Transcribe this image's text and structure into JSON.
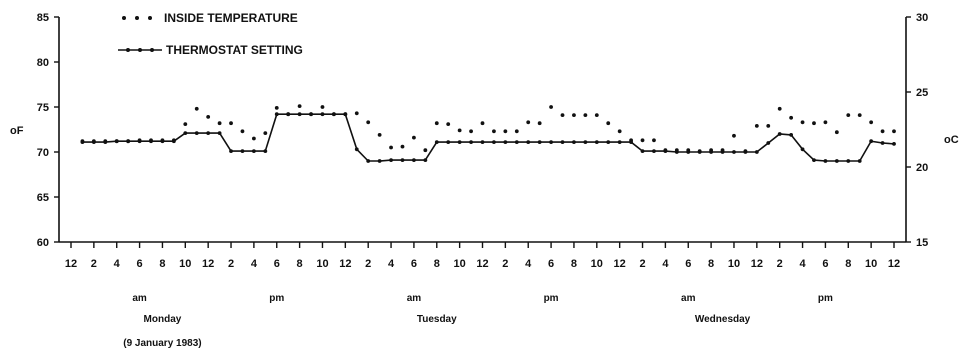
{
  "chart_data": {
    "type": "line",
    "title": "",
    "y_left": {
      "label": "oF",
      "ticks": [
        60,
        65,
        70,
        75,
        80,
        85
      ],
      "lim": [
        60,
        85
      ]
    },
    "y_right": {
      "label": "oC",
      "ticks": [
        15,
        20,
        25,
        30
      ],
      "lim": [
        15,
        30
      ]
    },
    "x_ticks": [
      "12",
      "2",
      "4",
      "6",
      "8",
      "10",
      "12",
      "2",
      "4",
      "6",
      "8",
      "10",
      "12",
      "2",
      "4",
      "6",
      "8",
      "10",
      "12",
      "2",
      "4",
      "6",
      "8",
      "10",
      "12",
      "2",
      "4",
      "6",
      "8",
      "10",
      "12",
      "2",
      "4",
      "6",
      "8",
      "10",
      "12"
    ],
    "x_tick_hours": [
      0,
      2,
      4,
      6,
      8,
      10,
      12,
      14,
      16,
      18,
      20,
      22,
      24,
      26,
      28,
      30,
      32,
      34,
      36,
      38,
      40,
      42,
      44,
      46,
      48,
      50,
      52,
      54,
      56,
      58,
      60,
      62,
      64,
      66,
      68,
      70,
      72
    ],
    "x_lim": [
      0,
      72
    ],
    "ampm_labels": [
      {
        "text": "am",
        "hour": 6
      },
      {
        "text": "pm",
        "hour": 18
      },
      {
        "text": "am",
        "hour": 30
      },
      {
        "text": "pm",
        "hour": 42
      },
      {
        "text": "am",
        "hour": 54
      },
      {
        "text": "pm",
        "hour": 66
      }
    ],
    "day_labels": [
      {
        "text": "Monday",
        "hour": 8
      },
      {
        "text": "Tuesday",
        "hour": 32
      },
      {
        "text": "Wednesday",
        "hour": 57
      }
    ],
    "date_note": {
      "text": "(9 January 1983)",
      "hour": 8
    },
    "legend": {
      "placement": "top-left"
    },
    "series": [
      {
        "name": "THERMOSTAT SETTING",
        "style": "line-with-dots",
        "x": [
          1,
          2,
          3,
          4,
          5,
          6,
          7,
          8,
          9,
          10,
          11,
          12,
          13,
          14,
          15,
          16,
          17,
          18,
          19,
          20,
          21,
          22,
          23,
          24,
          25,
          26,
          27,
          28,
          29,
          30,
          31,
          32,
          33,
          34,
          35,
          36,
          37,
          38,
          39,
          40,
          41,
          42,
          43,
          44,
          45,
          46,
          47,
          48,
          49,
          50,
          51,
          52,
          53,
          54,
          55,
          56,
          57,
          58,
          59,
          60,
          61,
          62,
          63,
          64,
          65,
          66,
          67,
          68,
          69,
          70,
          71,
          72
        ],
        "y": [
          71.1,
          71.1,
          71.1,
          71.2,
          71.2,
          71.2,
          71.2,
          71.2,
          71.2,
          72.1,
          72.1,
          72.1,
          72.1,
          70.1,
          70.1,
          70.1,
          70.1,
          74.2,
          74.2,
          74.2,
          74.2,
          74.2,
          74.2,
          74.2,
          70.3,
          69.0,
          69.0,
          69.1,
          69.1,
          69.1,
          69.1,
          71.1,
          71.1,
          71.1,
          71.1,
          71.1,
          71.1,
          71.1,
          71.1,
          71.1,
          71.1,
          71.1,
          71.1,
          71.1,
          71.1,
          71.1,
          71.1,
          71.1,
          71.1,
          70.1,
          70.1,
          70.1,
          70.0,
          70.0,
          70.0,
          70.0,
          70.0,
          70.0,
          70.0,
          70.0,
          71.0,
          72.0,
          71.9,
          70.3,
          69.1,
          69.0,
          69.0,
          69.0,
          69.0,
          71.2,
          71.0,
          70.9
        ]
      },
      {
        "name": "INSIDE TEMPERATURE",
        "style": "dots",
        "x": [
          1,
          2,
          3,
          4,
          5,
          6,
          7,
          8,
          9,
          10,
          11,
          12,
          13,
          14,
          15,
          16,
          17,
          18,
          19,
          20,
          21,
          22,
          23,
          24,
          25,
          26,
          27,
          28,
          29,
          30,
          31,
          32,
          33,
          34,
          35,
          36,
          37,
          38,
          39,
          40,
          41,
          42,
          43,
          44,
          45,
          46,
          47,
          48,
          49,
          50,
          51,
          52,
          53,
          54,
          55,
          56,
          57,
          58,
          59,
          60,
          61,
          62,
          63,
          64,
          65,
          66,
          67,
          68,
          69,
          70,
          71,
          72
        ],
        "y": [
          71.2,
          71.2,
          71.2,
          71.2,
          71.2,
          71.3,
          71.3,
          71.3,
          71.3,
          73.1,
          74.8,
          73.9,
          73.2,
          73.2,
          72.3,
          71.5,
          72.1,
          74.9,
          74.2,
          75.1,
          74.2,
          75.0,
          74.2,
          74.2,
          74.3,
          73.3,
          71.9,
          70.5,
          70.6,
          71.6,
          70.2,
          73.2,
          73.1,
          72.4,
          72.3,
          73.2,
          72.3,
          72.3,
          72.3,
          73.3,
          73.2,
          75.0,
          74.1,
          74.1,
          74.1,
          74.1,
          73.2,
          72.3,
          71.3,
          71.3,
          71.3,
          70.2,
          70.2,
          70.2,
          70.1,
          70.2,
          70.2,
          71.8,
          70.1,
          72.9,
          72.9,
          74.8,
          73.8,
          73.3,
          73.2,
          73.3,
          72.2,
          74.1,
          74.1,
          73.3,
          72.3,
          72.3
        ]
      }
    ]
  }
}
